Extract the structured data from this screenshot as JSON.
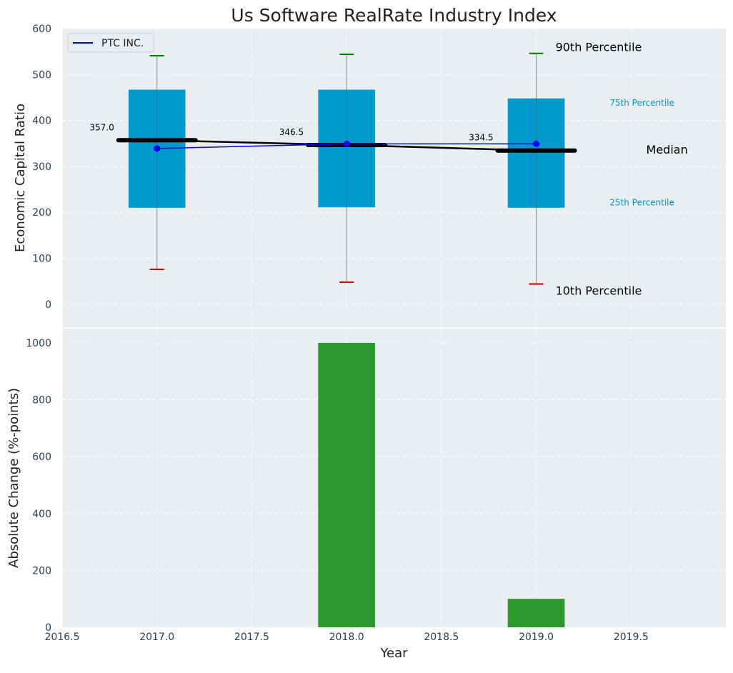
{
  "chart_data": [
    {
      "type": "box",
      "title": "Us Software RealRate Industry Index",
      "ylabel": "Economic Capital Ratio",
      "xlabel": "",
      "ylim": [
        -50,
        600
      ],
      "yticks": [
        0,
        100,
        200,
        300,
        400,
        500,
        600
      ],
      "grid": true,
      "legend": {
        "placement": "top-left",
        "entries": [
          "PTC INC."
        ]
      },
      "boxes": [
        {
          "x": 2017.0,
          "p10": 76,
          "p25": 210,
          "median": 357.0,
          "median_label": "357.0",
          "p75": 467,
          "p90": 541
        },
        {
          "x": 2018.0,
          "p10": 48,
          "p25": 211,
          "median": 346.5,
          "median_label": "346.5",
          "p75": 467,
          "p90": 544
        },
        {
          "x": 2019.0,
          "p10": 44,
          "p25": 210,
          "median": 334.5,
          "median_label": "334.5",
          "p75": 448,
          "p90": 546
        }
      ],
      "series": [
        {
          "name": "PTC INC.",
          "x": [
            2017.0,
            2018.0,
            2019.0
          ],
          "values": [
            339,
            349,
            349
          ],
          "color": "#0000ff"
        }
      ],
      "annotations": {
        "p90": "90th Percentile",
        "p75": "75th Percentile",
        "median": "Median",
        "p25": "25th Percentile",
        "p10": "10th Percentile"
      }
    },
    {
      "type": "bar",
      "ylabel": "Absolute Change (%-points)",
      "xlabel": "Year",
      "xlim": [
        2016.5,
        2020.0
      ],
      "xticks": [
        2016.5,
        2017.0,
        2017.5,
        2018.0,
        2018.5,
        2019.0,
        2019.5
      ],
      "xtick_labels": [
        "2016.5",
        "2017.0",
        "2017.5",
        "2018.0",
        "2018.5",
        "2019.0",
        "2019.5"
      ],
      "ylim": [
        0,
        1050
      ],
      "yticks": [
        0,
        200,
        400,
        600,
        800,
        1000
      ],
      "grid": true,
      "x": [
        2017.0,
        2018.0,
        2019.0
      ],
      "values": [
        0,
        1000,
        100
      ]
    }
  ],
  "colors": {
    "box": "#0099cc",
    "bar": "#2e962e",
    "p90_cap": "#008000",
    "p10_cap": "#cc0000",
    "panel_bg": "#eaeef0",
    "annotation_small": "#0099cc"
  }
}
